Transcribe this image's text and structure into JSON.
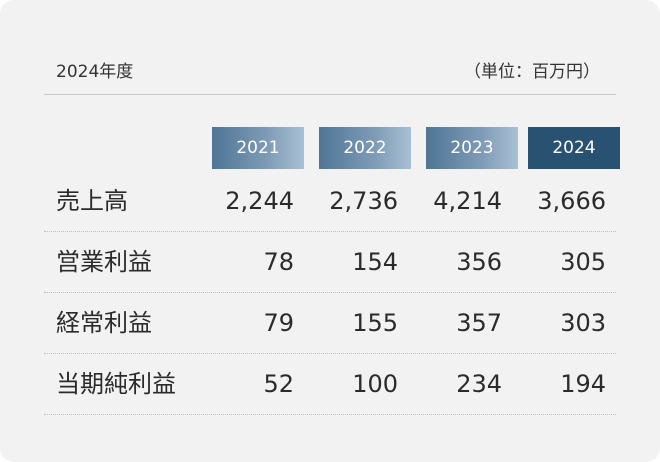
{
  "header": {
    "title": "2024年度",
    "unit": "（単位：百万円）"
  },
  "years": [
    "2021",
    "2022",
    "2023",
    "2024"
  ],
  "rows": [
    {
      "label": "売上高",
      "values": [
        "2,244",
        "2,736",
        "4,214",
        "3,666"
      ]
    },
    {
      "label": "営業利益",
      "values": [
        "78",
        "154",
        "356",
        "305"
      ]
    },
    {
      "label": "経常利益",
      "values": [
        "79",
        "155",
        "357",
        "303"
      ]
    },
    {
      "label": "当期純利益",
      "values": [
        "52",
        "100",
        "234",
        "194"
      ]
    }
  ],
  "colors": {
    "header_light": "#6f8fac",
    "header_highlight": "#285172",
    "card_background": "#f2f2f2"
  }
}
